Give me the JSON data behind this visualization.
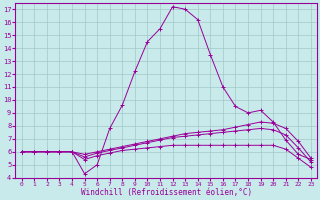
{
  "xlabel": "Windchill (Refroidissement éolien,°C)",
  "background_color": "#c8eaea",
  "grid_color": "#b8d8d8",
  "line_color": "#990099",
  "xlim": [
    -0.5,
    23.5
  ],
  "ylim": [
    4,
    17.5
  ],
  "yticks": [
    4,
    5,
    6,
    7,
    8,
    9,
    10,
    11,
    12,
    13,
    14,
    15,
    16,
    17
  ],
  "xticks": [
    0,
    1,
    2,
    3,
    4,
    5,
    6,
    7,
    8,
    9,
    10,
    11,
    12,
    13,
    14,
    15,
    16,
    17,
    18,
    19,
    20,
    21,
    22,
    23
  ],
  "series": [
    [
      6.0,
      6.0,
      6.0,
      6.0,
      6.0,
      4.3,
      5.0,
      7.8,
      9.6,
      12.2,
      14.5,
      15.5,
      17.2,
      17.0,
      16.2,
      13.5,
      11.0,
      9.5,
      9.0,
      9.2,
      8.3,
      6.9,
      5.8,
      5.4
    ],
    [
      6.0,
      6.0,
      6.0,
      6.0,
      6.0,
      5.8,
      6.0,
      6.2,
      6.4,
      6.6,
      6.8,
      7.0,
      7.2,
      7.4,
      7.5,
      7.6,
      7.7,
      7.9,
      8.1,
      8.3,
      8.2,
      7.8,
      6.8,
      5.5
    ],
    [
      6.0,
      6.0,
      6.0,
      6.0,
      6.0,
      5.6,
      5.9,
      6.1,
      6.3,
      6.5,
      6.7,
      6.9,
      7.1,
      7.2,
      7.3,
      7.4,
      7.5,
      7.6,
      7.7,
      7.8,
      7.7,
      7.3,
      6.3,
      5.2
    ],
    [
      6.0,
      6.0,
      6.0,
      6.0,
      6.0,
      5.4,
      5.7,
      5.9,
      6.1,
      6.2,
      6.3,
      6.4,
      6.5,
      6.5,
      6.5,
      6.5,
      6.5,
      6.5,
      6.5,
      6.5,
      6.5,
      6.2,
      5.5,
      4.8
    ]
  ]
}
